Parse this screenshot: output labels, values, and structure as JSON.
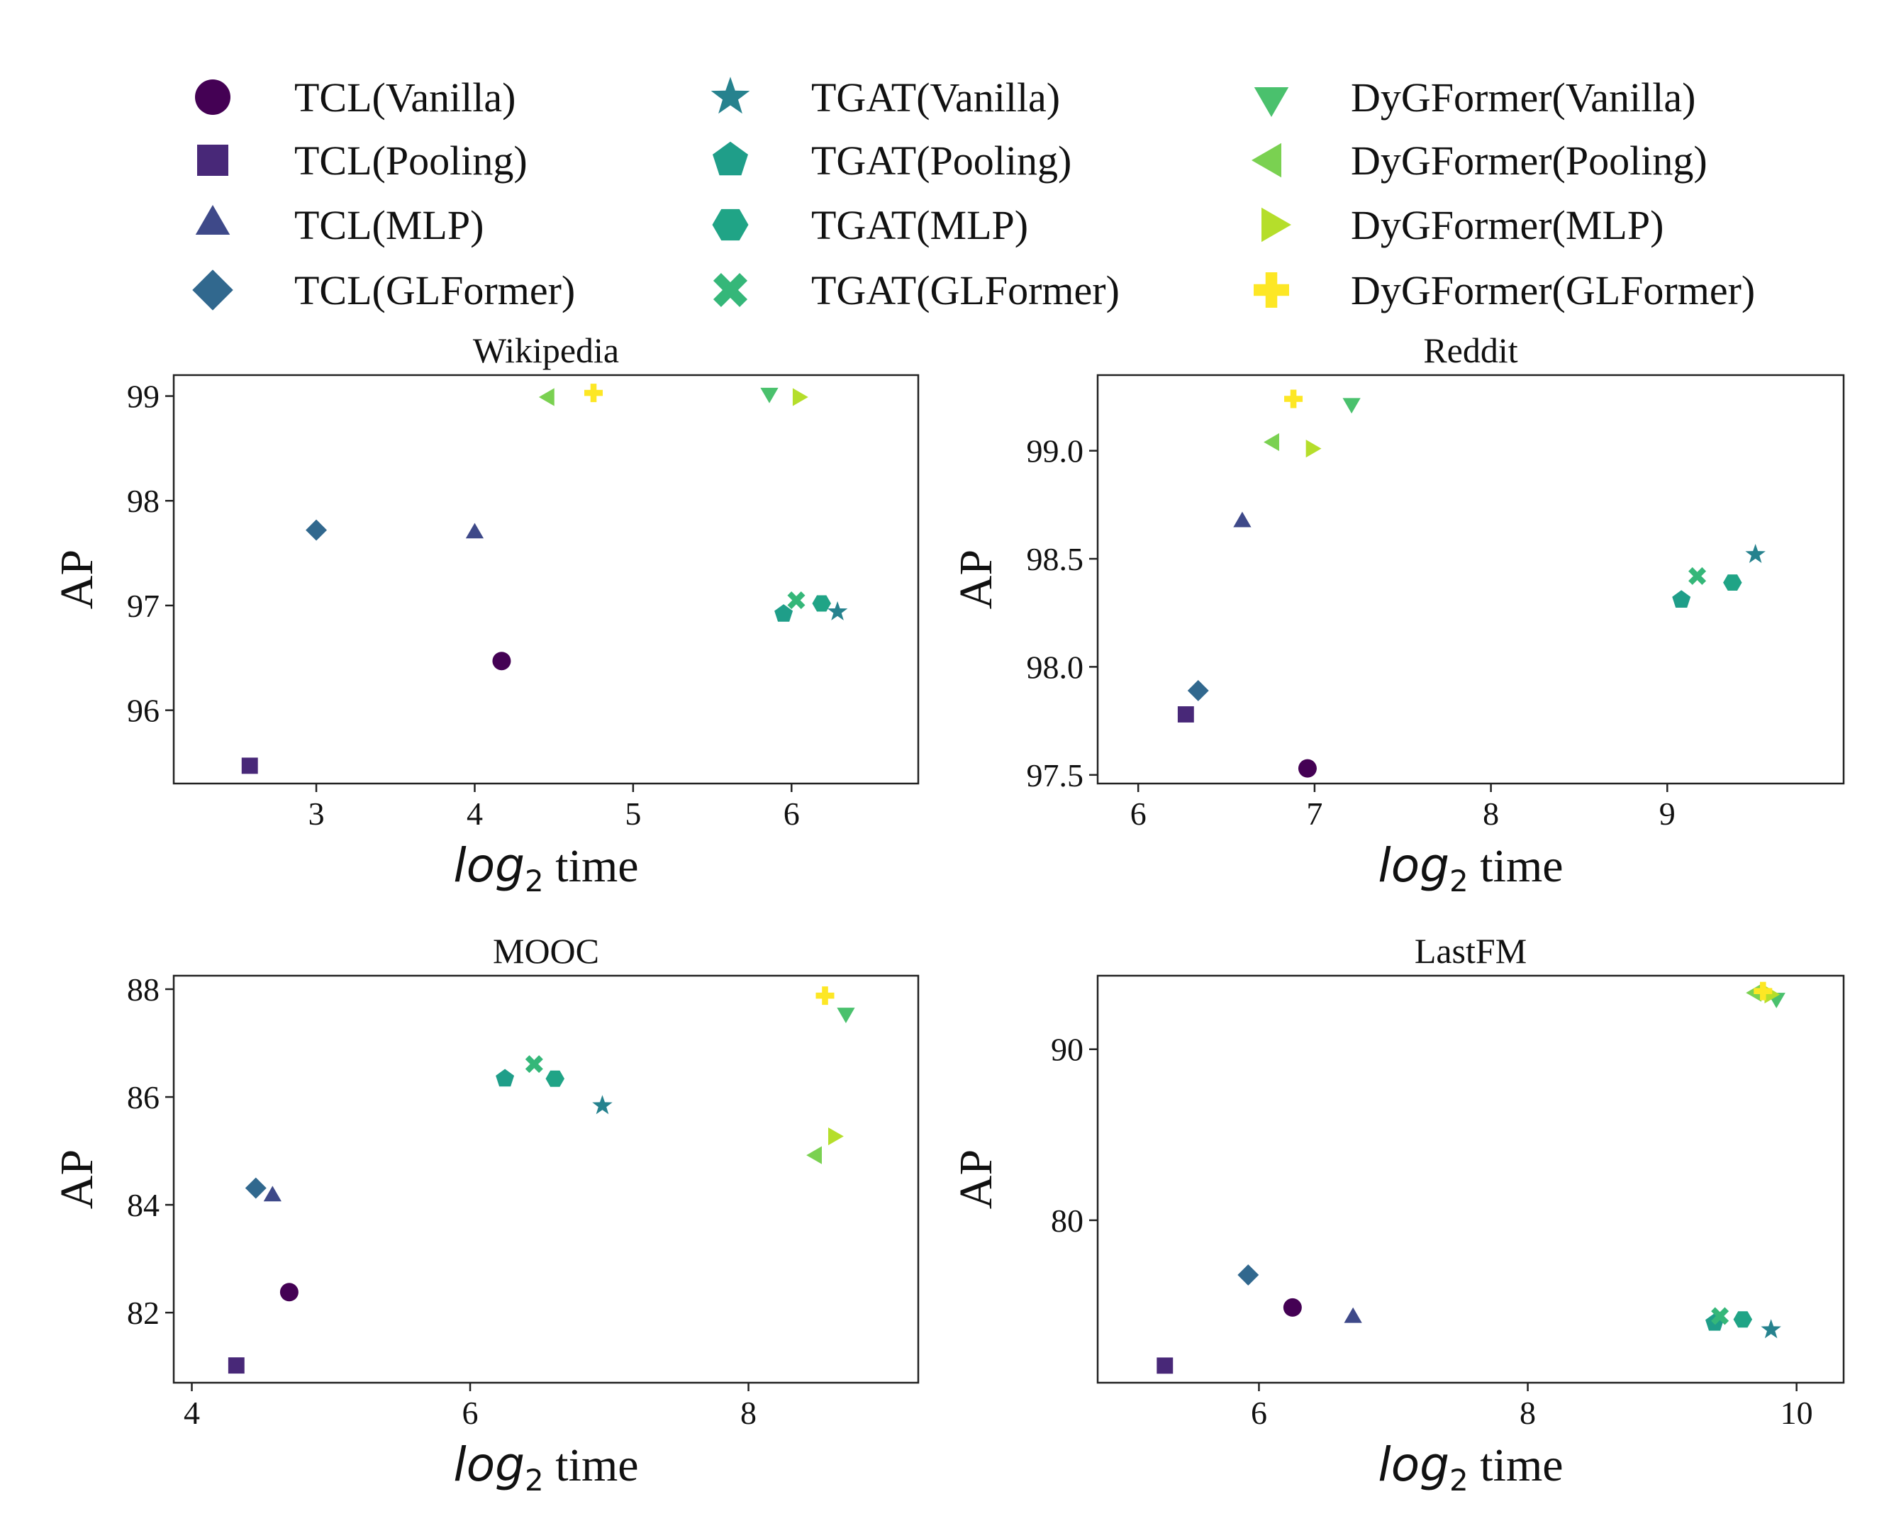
{
  "legend": {
    "items": [
      {
        "label": "TCL(Vanilla)",
        "marker": "circle",
        "color": "#440154"
      },
      {
        "label": "TCL(Pooling)",
        "marker": "square",
        "color": "#482878"
      },
      {
        "label": "TCL(MLP)",
        "marker": "triangle-up",
        "color": "#3e4989"
      },
      {
        "label": "TCL(GLFormer)",
        "marker": "diamond",
        "color": "#31688e"
      },
      {
        "label": "TGAT(Vanilla)",
        "marker": "star",
        "color": "#26828e"
      },
      {
        "label": "TGAT(Pooling)",
        "marker": "pentagon",
        "color": "#1f9e89"
      },
      {
        "label": "TGAT(MLP)",
        "marker": "hexagon",
        "color": "#20a486"
      },
      {
        "label": "TGAT(GLFormer)",
        "marker": "x",
        "color": "#35b779"
      },
      {
        "label": "DyGFormer(Vanilla)",
        "marker": "triangle-down",
        "color": "#4ac16d"
      },
      {
        "label": "DyGFormer(Pooling)",
        "marker": "triangle-left",
        "color": "#7ad151"
      },
      {
        "label": "DyGFormer(MLP)",
        "marker": "triangle-right",
        "color": "#b5de2b"
      },
      {
        "label": "DyGFormer(GLFormer)",
        "marker": "plus",
        "color": "#fde725"
      }
    ]
  },
  "chart_data": [
    {
      "type": "scatter",
      "title": "Wikipedia",
      "xlabel_main": "log",
      "xlabel_sub": "2",
      "xlabel_rest": " time",
      "ylabel": "AP",
      "xlim": [
        2.1,
        6.8
      ],
      "ylim": [
        95.3,
        99.2
      ],
      "xticks": [
        3,
        4,
        5,
        6
      ],
      "xtick_labels": [
        "3",
        "4",
        "5",
        "6"
      ],
      "yticks": [
        96,
        97,
        98,
        99
      ],
      "ytick_labels": [
        "96",
        "97",
        "98",
        "99"
      ],
      "points": [
        {
          "series": "TCL(Vanilla)",
          "x": 4.17,
          "y": 96.47
        },
        {
          "series": "TCL(Pooling)",
          "x": 2.58,
          "y": 95.47
        },
        {
          "series": "TCL(MLP)",
          "x": 4.0,
          "y": 97.69
        },
        {
          "series": "TCL(GLFormer)",
          "x": 3.0,
          "y": 97.72
        },
        {
          "series": "TGAT(Vanilla)",
          "x": 6.29,
          "y": 96.94
        },
        {
          "series": "TGAT(Pooling)",
          "x": 5.95,
          "y": 96.92
        },
        {
          "series": "TGAT(MLP)",
          "x": 6.19,
          "y": 97.02
        },
        {
          "series": "TGAT(GLFormer)",
          "x": 6.03,
          "y": 97.05
        },
        {
          "series": "DyGFormer(Vanilla)",
          "x": 5.86,
          "y": 99.03
        },
        {
          "series": "DyGFormer(Pooling)",
          "x": 4.47,
          "y": 98.99
        },
        {
          "series": "DyGFormer(MLP)",
          "x": 6.04,
          "y": 98.99
        },
        {
          "series": "DyGFormer(GLFormer)",
          "x": 4.75,
          "y": 99.03
        }
      ]
    },
    {
      "type": "scatter",
      "title": "Reddit",
      "xlabel_main": "log",
      "xlabel_sub": "2",
      "xlabel_rest": " time",
      "ylabel": "AP",
      "xlim": [
        5.77,
        10.0
      ],
      "ylim": [
        97.46,
        99.35
      ],
      "xticks": [
        6,
        7,
        8,
        9
      ],
      "xtick_labels": [
        "6",
        "7",
        "8",
        "9"
      ],
      "yticks": [
        97.5,
        98.0,
        98.5,
        99.0
      ],
      "ytick_labels": [
        "97.5",
        "98.0",
        "98.5",
        "99.0"
      ],
      "points": [
        {
          "series": "TCL(Vanilla)",
          "x": 6.96,
          "y": 97.53
        },
        {
          "series": "TCL(Pooling)",
          "x": 6.27,
          "y": 97.78
        },
        {
          "series": "TCL(MLP)",
          "x": 6.59,
          "y": 98.67
        },
        {
          "series": "TCL(GLFormer)",
          "x": 6.34,
          "y": 97.89
        },
        {
          "series": "TGAT(Vanilla)",
          "x": 9.5,
          "y": 98.52
        },
        {
          "series": "TGAT(Pooling)",
          "x": 9.08,
          "y": 98.31
        },
        {
          "series": "TGAT(MLP)",
          "x": 9.37,
          "y": 98.39
        },
        {
          "series": "TGAT(GLFormer)",
          "x": 9.17,
          "y": 98.42
        },
        {
          "series": "DyGFormer(Vanilla)",
          "x": 7.21,
          "y": 99.22
        },
        {
          "series": "DyGFormer(Pooling)",
          "x": 6.77,
          "y": 99.04
        },
        {
          "series": "DyGFormer(MLP)",
          "x": 6.98,
          "y": 99.01
        },
        {
          "series": "DyGFormer(GLFormer)",
          "x": 6.88,
          "y": 99.24
        }
      ]
    },
    {
      "type": "scatter",
      "title": "MOOC",
      "xlabel_main": "log",
      "xlabel_sub": "2",
      "xlabel_rest": " time",
      "ylabel": "AP",
      "xlim": [
        3.87,
        9.22
      ],
      "ylim": [
        80.7,
        88.25
      ],
      "xticks": [
        4,
        6,
        8
      ],
      "xtick_labels": [
        "4",
        "6",
        "8"
      ],
      "yticks": [
        82,
        84,
        86,
        88
      ],
      "ytick_labels": [
        "82",
        "84",
        "86",
        "88"
      ],
      "points": [
        {
          "series": "TCL(Vanilla)",
          "x": 4.7,
          "y": 82.38
        },
        {
          "series": "TCL(Pooling)",
          "x": 4.32,
          "y": 81.02
        },
        {
          "series": "TCL(MLP)",
          "x": 4.58,
          "y": 84.16
        },
        {
          "series": "TCL(GLFormer)",
          "x": 4.46,
          "y": 84.31
        },
        {
          "series": "TGAT(Vanilla)",
          "x": 6.95,
          "y": 85.84
        },
        {
          "series": "TGAT(Pooling)",
          "x": 6.25,
          "y": 86.34
        },
        {
          "series": "TGAT(MLP)",
          "x": 6.61,
          "y": 86.34
        },
        {
          "series": "TGAT(GLFormer)",
          "x": 6.46,
          "y": 86.61
        },
        {
          "series": "DyGFormer(Vanilla)",
          "x": 8.7,
          "y": 87.56
        },
        {
          "series": "DyGFormer(Pooling)",
          "x": 8.49,
          "y": 84.92
        },
        {
          "series": "DyGFormer(MLP)",
          "x": 8.61,
          "y": 85.27
        },
        {
          "series": "DyGFormer(GLFormer)",
          "x": 8.55,
          "y": 87.88
        }
      ]
    },
    {
      "type": "scatter",
      "title": "LastFM",
      "xlabel_main": "log",
      "xlabel_sub": "2",
      "xlabel_rest": " time",
      "ylabel": "AP",
      "xlim": [
        4.8,
        10.35
      ],
      "ylim": [
        70.5,
        94.3
      ],
      "xticks": [
        6,
        8,
        10
      ],
      "xtick_labels": [
        "6",
        "8",
        "10"
      ],
      "yticks": [
        80,
        90
      ],
      "ytick_labels": [
        "80",
        "90"
      ],
      "points": [
        {
          "series": "TCL(Vanilla)",
          "x": 6.25,
          "y": 74.9
        },
        {
          "series": "TCL(Pooling)",
          "x": 5.3,
          "y": 71.5
        },
        {
          "series": "TCL(MLP)",
          "x": 6.7,
          "y": 74.3
        },
        {
          "series": "TCL(GLFormer)",
          "x": 5.92,
          "y": 76.8
        },
        {
          "series": "TGAT(Vanilla)",
          "x": 9.81,
          "y": 73.6
        },
        {
          "series": "TGAT(Pooling)",
          "x": 9.39,
          "y": 74.0
        },
        {
          "series": "TGAT(MLP)",
          "x": 9.6,
          "y": 74.2
        },
        {
          "series": "TGAT(GLFormer)",
          "x": 9.43,
          "y": 74.4
        },
        {
          "series": "DyGFormer(Vanilla)",
          "x": 9.85,
          "y": 93.0
        },
        {
          "series": "DyGFormer(Pooling)",
          "x": 9.7,
          "y": 93.3
        },
        {
          "series": "DyGFormer(MLP)",
          "x": 9.8,
          "y": 93.2
        },
        {
          "series": "DyGFormer(GLFormer)",
          "x": 9.75,
          "y": 93.4
        }
      ]
    }
  ]
}
